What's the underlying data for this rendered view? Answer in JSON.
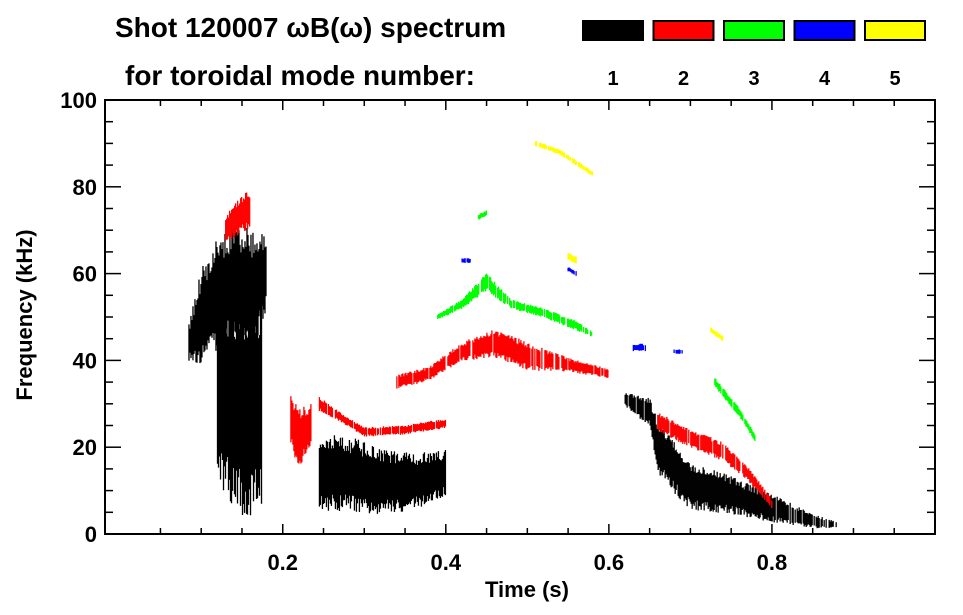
{
  "chart_data": {
    "type": "heatmap",
    "title": "Shot 120007 ωB(ω) spectrum",
    "legend_title": "for toroidal mode number:",
    "xlabel": "Time (s)",
    "ylabel": "Frequency (kHz)",
    "xlim": [
      -0.018,
      1.0
    ],
    "ylim": [
      0,
      100
    ],
    "xticks": [
      {
        "v": 0.2,
        "label": "0.2"
      },
      {
        "v": 0.4,
        "label": "0.4"
      },
      {
        "v": 0.6,
        "label": "0.6"
      },
      {
        "v": 0.8,
        "label": "0.8"
      }
    ],
    "yticks": [
      {
        "v": 0,
        "label": "0"
      },
      {
        "v": 20,
        "label": "20"
      },
      {
        "v": 40,
        "label": "40"
      },
      {
        "v": 60,
        "label": "60"
      },
      {
        "v": 80,
        "label": "80"
      },
      {
        "v": 100,
        "label": "100"
      }
    ],
    "legend": [
      {
        "label": "1",
        "color": "#000000"
      },
      {
        "label": "2",
        "color": "#ff0000"
      },
      {
        "label": "3",
        "color": "#00ff00"
      },
      {
        "label": "4",
        "color": "#0000ff"
      },
      {
        "label": "5",
        "color": "#ffff00"
      }
    ],
    "series": [
      {
        "name": "n=1",
        "color": "#000000",
        "ridges": [
          [
            [
              0.085,
              44,
              4
            ],
            [
              0.1,
              50,
              10
            ],
            [
              0.12,
              55,
              12
            ],
            [
              0.14,
              58,
              12
            ],
            [
              0.16,
              55,
              14
            ],
            [
              0.18,
              60,
              8
            ]
          ],
          [
            [
              0.12,
              35,
              20
            ],
            [
              0.14,
              30,
              24
            ],
            [
              0.16,
              30,
              24
            ],
            [
              0.175,
              30,
              24
            ]
          ],
          [
            [
              0.245,
              14,
              8
            ],
            [
              0.28,
              14,
              8
            ],
            [
              0.32,
              12,
              7
            ],
            [
              0.36,
              12,
              6
            ],
            [
              0.4,
              14,
              5
            ]
          ],
          [
            [
              0.62,
              31,
              1.5
            ],
            [
              0.65,
              28,
              3
            ],
            [
              0.66,
              20,
              6
            ],
            [
              0.7,
              11,
              5
            ],
            [
              0.75,
              9,
              4
            ],
            [
              0.8,
              6,
              3
            ],
            [
              0.85,
              3,
              1.5
            ],
            [
              0.88,
              2,
              0.7
            ]
          ]
        ]
      },
      {
        "name": "n=2",
        "color": "#ff0000",
        "ridges": [
          [
            [
              0.13,
              70,
              3
            ],
            [
              0.145,
              73,
              4
            ],
            [
              0.16,
              75,
              4
            ]
          ],
          [
            [
              0.21,
              26,
              6
            ],
            [
              0.22,
              22,
              6
            ],
            [
              0.235,
              25,
              5
            ]
          ],
          [
            [
              0.245,
              30,
              1.5
            ],
            [
              0.27,
              27,
              1
            ],
            [
              0.3,
              23.5,
              1
            ],
            [
              0.35,
              24,
              1
            ],
            [
              0.4,
              25.5,
              1
            ]
          ],
          [
            [
              0.34,
              35,
              1.5
            ],
            [
              0.38,
              37,
              1.5
            ],
            [
              0.42,
              42,
              2
            ],
            [
              0.46,
              44,
              3
            ],
            [
              0.5,
              41,
              3
            ],
            [
              0.55,
              39,
              1.5
            ],
            [
              0.6,
              37,
              1
            ]
          ],
          [
            [
              0.66,
              26,
              2
            ],
            [
              0.7,
              22,
              2
            ],
            [
              0.74,
              19,
              2
            ],
            [
              0.77,
              14,
              1.5
            ],
            [
              0.8,
              7,
              1
            ]
          ]
        ]
      },
      {
        "name": "n=3",
        "color": "#00ff00",
        "ridges": [
          [
            [
              0.39,
              50,
              0.6
            ],
            [
              0.42,
              53,
              1
            ],
            [
              0.45,
              58,
              2
            ],
            [
              0.48,
              53,
              1
            ],
            [
              0.52,
              51,
              1
            ],
            [
              0.56,
              48,
              1
            ],
            [
              0.58,
              46,
              0.6
            ]
          ],
          [
            [
              0.44,
              73,
              0.6
            ],
            [
              0.45,
              74,
              0.6
            ]
          ],
          [
            [
              0.73,
              35,
              1
            ],
            [
              0.76,
              28,
              1
            ],
            [
              0.78,
              22,
              0.8
            ]
          ]
        ]
      },
      {
        "name": "n=4",
        "color": "#0000ff",
        "ridges": [
          [
            [
              0.42,
              63,
              0.5
            ],
            [
              0.43,
              63,
              0.5
            ]
          ],
          [
            [
              0.55,
              61,
              0.5
            ],
            [
              0.56,
              60,
              0.5
            ]
          ],
          [
            [
              0.63,
              43,
              0.8
            ],
            [
              0.645,
              43,
              0.8
            ]
          ],
          [
            [
              0.68,
              42,
              0.5
            ],
            [
              0.69,
              42,
              0.5
            ]
          ]
        ]
      },
      {
        "name": "n=5",
        "color": "#ffff00",
        "ridges": [
          [
            [
              0.51,
              90,
              0.6
            ],
            [
              0.54,
              88,
              0.6
            ],
            [
              0.58,
              83,
              0.6
            ]
          ],
          [
            [
              0.55,
              64,
              0.8
            ],
            [
              0.56,
              63,
              0.8
            ]
          ],
          [
            [
              0.725,
              47,
              0.6
            ],
            [
              0.74,
              45,
              0.6
            ]
          ]
        ]
      }
    ]
  }
}
